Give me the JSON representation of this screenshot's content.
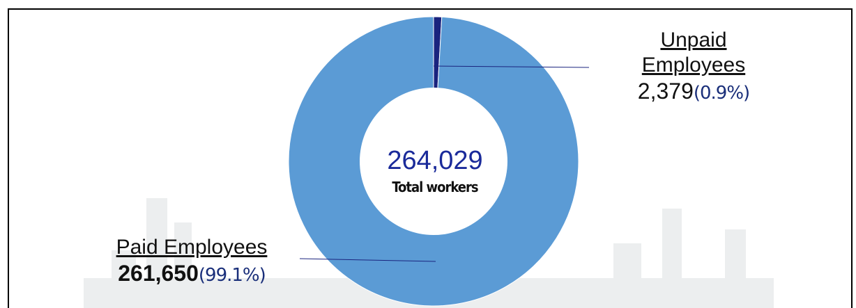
{
  "chart_data": {
    "type": "donut",
    "categories": [
      "Paid Employees",
      "Unpaid Employees"
    ],
    "values": [
      261650,
      2379
    ],
    "value_labels": [
      "261,650",
      "2,379"
    ],
    "percentages": [
      99.1,
      0.9
    ],
    "percentage_labels": [
      "(99.1%)",
      "(0.9%)"
    ],
    "colors": [
      "#5b9bd5",
      "#1a237e"
    ],
    "total": 264029,
    "total_label": "264,029",
    "center_text": "Total workers"
  }
}
